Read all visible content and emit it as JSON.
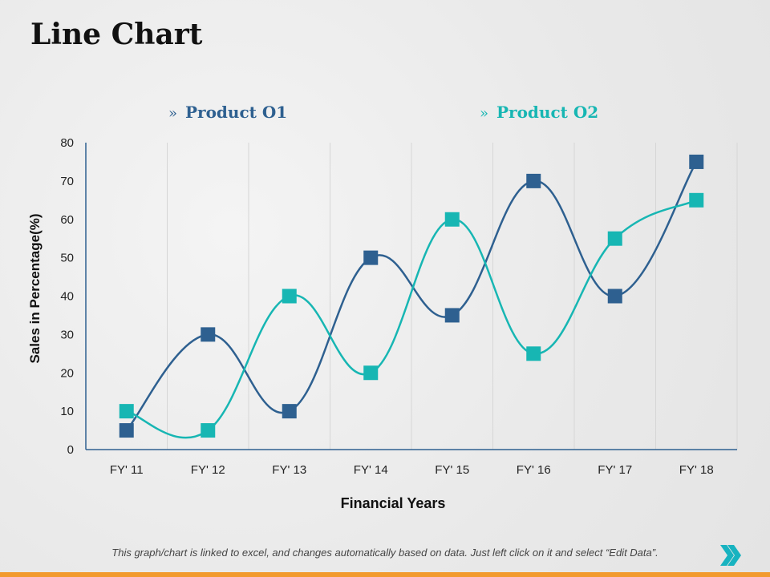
{
  "page": {
    "title": "Line Chart",
    "footer_note": "This graph/chart is linked to excel, and changes automatically based on data. Just left click on it and select “Edit Data”.",
    "accent_color": "#f29a2e",
    "next_icon": "double-chevron-right-icon"
  },
  "legend": {
    "chevron": "»",
    "items": [
      {
        "label": "Product O1",
        "color": "#2e6090"
      },
      {
        "label": "Product O2",
        "color": "#17b6b3"
      }
    ]
  },
  "chart_data": {
    "type": "line",
    "title": "",
    "xlabel": "Financial Years",
    "ylabel": "Sales in Percentage(%)",
    "categories": [
      "FY' 11",
      "FY' 12",
      "FY' 13",
      "FY' 14",
      "FY' 15",
      "FY' 16",
      "FY' 17",
      "FY' 18"
    ],
    "ylim": [
      0,
      80
    ],
    "yticks": [
      0,
      10,
      20,
      30,
      40,
      50,
      60,
      70,
      80
    ],
    "grid": "vertical",
    "smooth": true,
    "legend_position": "top",
    "series": [
      {
        "name": "Product O1",
        "color": "#2e6090",
        "values": [
          5,
          30,
          10,
          50,
          35,
          70,
          40,
          75
        ]
      },
      {
        "name": "Product O2",
        "color": "#17b6b3",
        "values": [
          10,
          5,
          40,
          20,
          60,
          25,
          55,
          65
        ]
      }
    ]
  }
}
